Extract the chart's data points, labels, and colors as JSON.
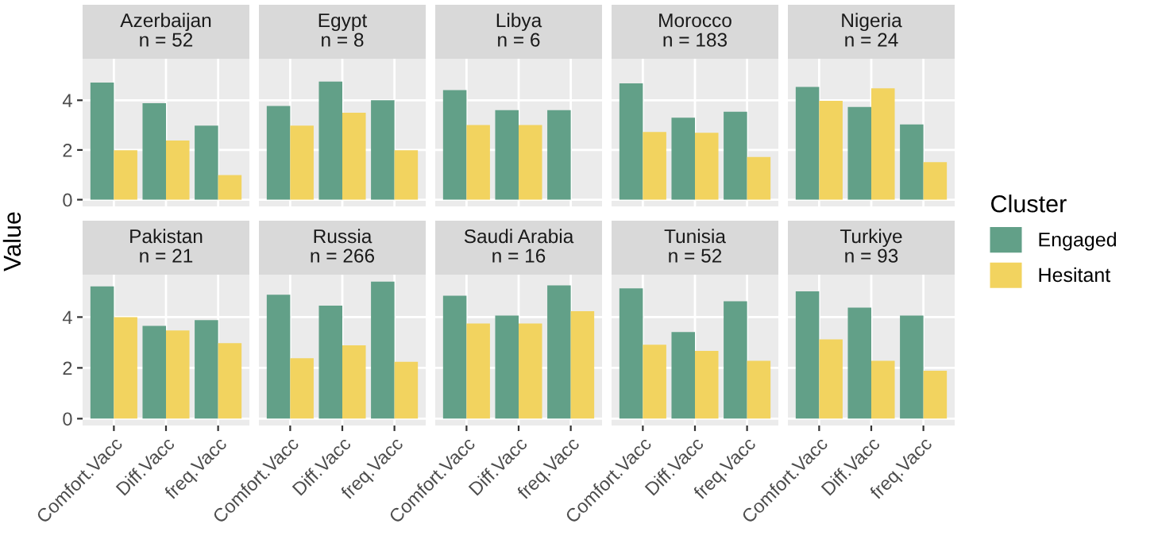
{
  "chart_data": [
    {
      "type": "bar",
      "title": "Azerbaijan",
      "subtitle": "n = 52",
      "categories": [
        "Comfort.Vacc",
        "Diff.Vacc",
        "freq.Vacc"
      ],
      "series": [
        {
          "name": "Engaged",
          "color": "#62a088",
          "values": [
            4.71,
            3.88,
            2.98
          ]
        },
        {
          "name": "Hesitant",
          "color": "#f2d35f",
          "values": [
            1.99,
            2.38,
            0.99
          ]
        }
      ],
      "ylim": [
        -0.27,
        5.67
      ],
      "yticks": [
        0,
        2,
        4
      ],
      "grid": true,
      "tick_labels": "y",
      "legend": "right",
      "legend_title": "Cluster"
    },
    {
      "type": "bar",
      "title": "Egypt",
      "subtitle": "n = 8",
      "categories": [
        "Comfort.Vacc",
        "Diff.Vacc",
        "freq.Vacc"
      ],
      "series": [
        {
          "name": "Engaged",
          "color": "#62a088",
          "values": [
            3.77,
            4.75,
            4.0
          ]
        },
        {
          "name": "Hesitant",
          "color": "#f2d35f",
          "values": [
            2.98,
            3.5,
            1.99
          ]
        }
      ],
      "ylim": [
        -0.27,
        5.67
      ],
      "yticks": [
        0,
        2,
        4
      ],
      "grid": true,
      "tick_labels": false
    },
    {
      "type": "bar",
      "title": "Libya",
      "subtitle": "n = 6",
      "categories": [
        "Comfort.Vacc",
        "Diff.Vacc",
        "freq.Vacc"
      ],
      "series": [
        {
          "name": "Engaged",
          "color": "#62a088",
          "values": [
            4.41,
            3.6,
            3.6
          ]
        },
        {
          "name": "Hesitant",
          "color": "#f2d35f",
          "values": [
            3.0,
            3.0,
            null
          ]
        }
      ],
      "ylim": [
        -0.27,
        5.67
      ],
      "yticks": [
        0,
        2,
        4
      ],
      "grid": true,
      "tick_labels": false
    },
    {
      "type": "bar",
      "title": "Morocco",
      "subtitle": "n = 183",
      "categories": [
        "Comfort.Vacc",
        "Diff.Vacc",
        "freq.Vacc"
      ],
      "series": [
        {
          "name": "Engaged",
          "color": "#62a088",
          "values": [
            4.68,
            3.3,
            3.54
          ]
        },
        {
          "name": "Hesitant",
          "color": "#f2d35f",
          "values": [
            2.72,
            2.69,
            1.72
          ]
        }
      ],
      "ylim": [
        -0.27,
        5.67
      ],
      "yticks": [
        0,
        2,
        4
      ],
      "grid": true,
      "tick_labels": false
    },
    {
      "type": "bar",
      "title": "Nigeria",
      "subtitle": "n = 24",
      "categories": [
        "Comfort.Vacc",
        "Diff.Vacc",
        "freq.Vacc"
      ],
      "series": [
        {
          "name": "Engaged",
          "color": "#62a088",
          "values": [
            4.54,
            3.73,
            3.03
          ]
        },
        {
          "name": "Hesitant",
          "color": "#f2d35f",
          "values": [
            3.98,
            4.48,
            1.51
          ]
        }
      ],
      "ylim": [
        -0.27,
        5.67
      ],
      "yticks": [
        0,
        2,
        4
      ],
      "grid": true,
      "tick_labels": false
    },
    {
      "type": "bar",
      "title": "Pakistan",
      "subtitle": "n = 21",
      "ylabel": "Value",
      "categories": [
        "Comfort.Vacc",
        "Diff.Vacc",
        "freq.Vacc"
      ],
      "series": [
        {
          "name": "Engaged",
          "color": "#62a088",
          "values": [
            5.21,
            3.65,
            3.88
          ]
        },
        {
          "name": "Hesitant",
          "color": "#f2d35f",
          "values": [
            4.0,
            3.47,
            2.97
          ]
        }
      ],
      "ylim": [
        -0.27,
        5.67
      ],
      "yticks": [
        0,
        2,
        4
      ],
      "grid": true
    },
    {
      "type": "bar",
      "title": "Russia",
      "subtitle": "n = 266",
      "categories": [
        "Comfort.Vacc",
        "Diff.Vacc",
        "freq.Vacc"
      ],
      "series": [
        {
          "name": "Engaged",
          "color": "#62a088",
          "values": [
            4.88,
            4.45,
            5.4
          ]
        },
        {
          "name": "Hesitant",
          "color": "#f2d35f",
          "values": [
            2.38,
            2.89,
            2.24
          ]
        }
      ],
      "ylim": [
        -0.27,
        5.67
      ],
      "yticks": [
        0,
        2,
        4
      ],
      "grid": true,
      "tick_labels": "x"
    },
    {
      "type": "bar",
      "title": "Saudi Arabia",
      "subtitle": "n = 16",
      "categories": [
        "Comfort.Vacc",
        "Diff.Vacc",
        "freq.Vacc"
      ],
      "series": [
        {
          "name": "Engaged",
          "color": "#62a088",
          "values": [
            4.84,
            4.06,
            5.25
          ]
        },
        {
          "name": "Hesitant",
          "color": "#f2d35f",
          "values": [
            3.75,
            3.75,
            4.23
          ]
        }
      ],
      "ylim": [
        -0.27,
        5.67
      ],
      "yticks": [
        0,
        2,
        4
      ],
      "grid": true,
      "tick_labels": "x"
    },
    {
      "type": "bar",
      "title": "Tunisia",
      "subtitle": "n = 52",
      "categories": [
        "Comfort.Vacc",
        "Diff.Vacc",
        "freq.Vacc"
      ],
      "series": [
        {
          "name": "Engaged",
          "color": "#62a088",
          "values": [
            5.13,
            3.41,
            4.62
          ]
        },
        {
          "name": "Hesitant",
          "color": "#f2d35f",
          "values": [
            2.91,
            2.67,
            2.28
          ]
        }
      ],
      "ylim": [
        -0.27,
        5.67
      ],
      "yticks": [
        0,
        2,
        4
      ],
      "grid": true,
      "tick_labels": "x"
    },
    {
      "type": "bar",
      "title": "Turkiye",
      "subtitle": "n = 93",
      "categories": [
        "Comfort.Vacc",
        "Diff.Vacc",
        "freq.Vacc"
      ],
      "series": [
        {
          "name": "Engaged",
          "color": "#62a088",
          "values": [
            5.01,
            4.37,
            4.06
          ]
        },
        {
          "name": "Hesitant",
          "color": "#f2d35f",
          "values": [
            3.12,
            2.28,
            1.89
          ]
        }
      ],
      "ylim": [
        -0.27,
        5.67
      ],
      "yticks": [
        0,
        2,
        4
      ],
      "grid": true,
      "tick_labels": "x"
    }
  ]
}
